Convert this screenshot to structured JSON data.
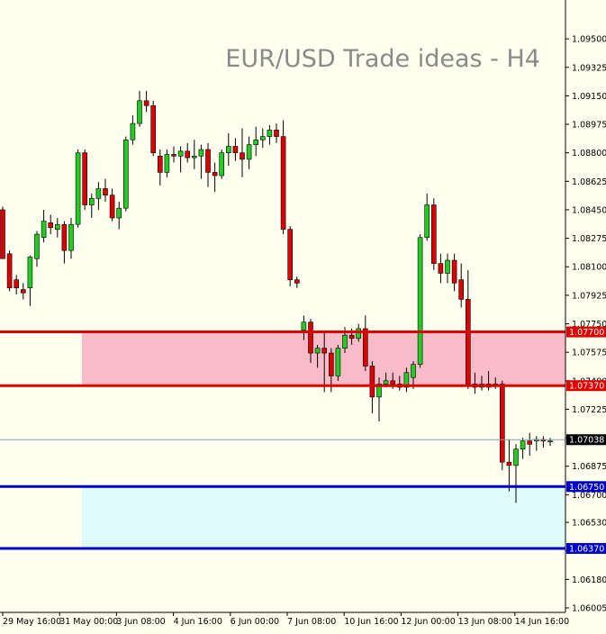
{
  "chart_data": {
    "type": "candlestick",
    "title": "EUR/USD Trade ideas - H4",
    "ylim": [
      1.06005,
      1.0965
    ],
    "y_ticks": [
      "1.09500",
      "1.09325",
      "1.09150",
      "1.08975",
      "1.08800",
      "1.08625",
      "1.08450",
      "1.08275",
      "1.08100",
      "1.07925",
      "1.07750",
      "1.07575",
      "1.07400",
      "1.07225",
      "1.07050",
      "1.06875",
      "1.06700",
      "1.06530",
      "1.06355",
      "1.06180",
      "1.06005"
    ],
    "x_ticks": [
      "29 May 16:00",
      "31 May 00:00",
      "3 Jun 08:00",
      "4 Jun 16:00",
      "6 Jun 00:00",
      "7 Jun 08:00",
      "10 Jun 16:00",
      "12 Jun 00:00",
      "13 Jun 08:00",
      "14 Jun 16:00"
    ],
    "zones": [
      {
        "top": 1.077,
        "bottom": 1.0737,
        "color": "#f8bcc8",
        "line_color": "#e00000",
        "top_label": "1.07700",
        "bottom_label": "1.07370"
      },
      {
        "top": 1.0675,
        "bottom": 1.0637,
        "color": "#e0fbfb",
        "line_color": "#0000cc",
        "top_label": "1.06750",
        "bottom_label": "1.06370"
      }
    ],
    "current_price": {
      "value": 1.07038,
      "label": "1.07038"
    },
    "candles": [
      {
        "o": 1.0845,
        "h": 1.0847,
        "l": 1.0815,
        "c": 1.0815
      },
      {
        "o": 1.0818,
        "h": 1.082,
        "l": 1.0795,
        "c": 1.0797
      },
      {
        "o": 1.0802,
        "h": 1.0805,
        "l": 1.0793,
        "c": 1.0797
      },
      {
        "o": 1.0796,
        "h": 1.08,
        "l": 1.079,
        "c": 1.0794
      },
      {
        "o": 1.0797,
        "h": 1.0817,
        "l": 1.0786,
        "c": 1.0816
      },
      {
        "o": 1.0815,
        "h": 1.0832,
        "l": 1.081,
        "c": 1.083
      },
      {
        "o": 1.0828,
        "h": 1.0845,
        "l": 1.0825,
        "c": 1.0838
      },
      {
        "o": 1.0837,
        "h": 1.0842,
        "l": 1.083,
        "c": 1.0834
      },
      {
        "o": 1.0833,
        "h": 1.084,
        "l": 1.0828,
        "c": 1.0836
      },
      {
        "o": 1.0836,
        "h": 1.0838,
        "l": 1.0812,
        "c": 1.082
      },
      {
        "o": 1.082,
        "h": 1.084,
        "l": 1.0815,
        "c": 1.0836
      },
      {
        "o": 1.0836,
        "h": 1.0882,
        "l": 1.0834,
        "c": 1.088
      },
      {
        "o": 1.088,
        "h": 1.0882,
        "l": 1.0845,
        "c": 1.0848
      },
      {
        "o": 1.0848,
        "h": 1.0855,
        "l": 1.084,
        "c": 1.0852
      },
      {
        "o": 1.0852,
        "h": 1.0862,
        "l": 1.0845,
        "c": 1.0858
      },
      {
        "o": 1.0858,
        "h": 1.0864,
        "l": 1.085,
        "c": 1.0854
      },
      {
        "o": 1.0854,
        "h": 1.0858,
        "l": 1.0838,
        "c": 1.084
      },
      {
        "o": 1.084,
        "h": 1.085,
        "l": 1.0833,
        "c": 1.0846
      },
      {
        "o": 1.0846,
        "h": 1.089,
        "l": 1.0844,
        "c": 1.0888
      },
      {
        "o": 1.0888,
        "h": 1.0903,
        "l": 1.0885,
        "c": 1.0898
      },
      {
        "o": 1.0898,
        "h": 1.0918,
        "l": 1.0896,
        "c": 1.0912
      },
      {
        "o": 1.0912,
        "h": 1.0918,
        "l": 1.0905,
        "c": 1.0909
      },
      {
        "o": 1.0909,
        "h": 1.0912,
        "l": 1.0878,
        "c": 1.088
      },
      {
        "o": 1.0878,
        "h": 1.0882,
        "l": 1.086,
        "c": 1.0868
      },
      {
        "o": 1.0868,
        "h": 1.0882,
        "l": 1.0865,
        "c": 1.0879
      },
      {
        "o": 1.0879,
        "h": 1.0884,
        "l": 1.0874,
        "c": 1.0878
      },
      {
        "o": 1.0878,
        "h": 1.0884,
        "l": 1.0868,
        "c": 1.0881
      },
      {
        "o": 1.0881,
        "h": 1.0886,
        "l": 1.0874,
        "c": 1.0877
      },
      {
        "o": 1.0877,
        "h": 1.0888,
        "l": 1.087,
        "c": 1.0878
      },
      {
        "o": 1.0878,
        "h": 1.0885,
        "l": 1.0864,
        "c": 1.0882
      },
      {
        "o": 1.0882,
        "h": 1.0886,
        "l": 1.0859,
        "c": 1.0868
      },
      {
        "o": 1.0868,
        "h": 1.0874,
        "l": 1.0856,
        "c": 1.0866
      },
      {
        "o": 1.0866,
        "h": 1.0882,
        "l": 1.0864,
        "c": 1.088
      },
      {
        "o": 1.088,
        "h": 1.0892,
        "l": 1.0872,
        "c": 1.0884
      },
      {
        "o": 1.0884,
        "h": 1.0889,
        "l": 1.0875,
        "c": 1.088
      },
      {
        "o": 1.088,
        "h": 1.0895,
        "l": 1.0865,
        "c": 1.0876
      },
      {
        "o": 1.0876,
        "h": 1.089,
        "l": 1.087,
        "c": 1.0885
      },
      {
        "o": 1.0885,
        "h": 1.0896,
        "l": 1.0878,
        "c": 1.0888
      },
      {
        "o": 1.0888,
        "h": 1.0895,
        "l": 1.0883,
        "c": 1.089
      },
      {
        "o": 1.089,
        "h": 1.0897,
        "l": 1.0885,
        "c": 1.0894
      },
      {
        "o": 1.0894,
        "h": 1.0898,
        "l": 1.0886,
        "c": 1.089
      },
      {
        "o": 1.089,
        "h": 1.09,
        "l": 1.083,
        "c": 1.0833
      },
      {
        "o": 1.0833,
        "h": 1.0835,
        "l": 1.0798,
        "c": 1.0802
      },
      {
        "o": 1.0802,
        "h": 1.0804,
        "l": 1.0797,
        "c": 1.08
      },
      {
        "o": 1.0771,
        "h": 1.078,
        "l": 1.0765,
        "c": 1.0776
      },
      {
        "o": 1.0776,
        "h": 1.0778,
        "l": 1.0751,
        "c": 1.0757
      },
      {
        "o": 1.0757,
        "h": 1.0762,
        "l": 1.0748,
        "c": 1.076
      },
      {
        "o": 1.076,
        "h": 1.077,
        "l": 1.0733,
        "c": 1.0757
      },
      {
        "o": 1.0757,
        "h": 1.076,
        "l": 1.0733,
        "c": 1.0743
      },
      {
        "o": 1.0743,
        "h": 1.0762,
        "l": 1.074,
        "c": 1.076
      },
      {
        "o": 1.076,
        "h": 1.0773,
        "l": 1.0757,
        "c": 1.0768
      },
      {
        "o": 1.0768,
        "h": 1.0772,
        "l": 1.0762,
        "c": 1.0766
      },
      {
        "o": 1.0766,
        "h": 1.0775,
        "l": 1.0764,
        "c": 1.0772
      },
      {
        "o": 1.0772,
        "h": 1.078,
        "l": 1.0746,
        "c": 1.0749
      },
      {
        "o": 1.0749,
        "h": 1.0752,
        "l": 1.072,
        "c": 1.073
      },
      {
        "o": 1.073,
        "h": 1.0742,
        "l": 1.0715,
        "c": 1.0738
      },
      {
        "o": 1.0738,
        "h": 1.0745,
        "l": 1.0736,
        "c": 1.074
      },
      {
        "o": 1.074,
        "h": 1.0745,
        "l": 1.0735,
        "c": 1.0738
      },
      {
        "o": 1.0738,
        "h": 1.0743,
        "l": 1.0734,
        "c": 1.0736
      },
      {
        "o": 1.0736,
        "h": 1.0748,
        "l": 1.0733,
        "c": 1.0745
      },
      {
        "o": 1.0742,
        "h": 1.0752,
        "l": 1.0735,
        "c": 1.075
      },
      {
        "o": 1.075,
        "h": 1.083,
        "l": 1.0748,
        "c": 1.0828
      },
      {
        "o": 1.0828,
        "h": 1.0855,
        "l": 1.0826,
        "c": 1.0848
      },
      {
        "o": 1.0848,
        "h": 1.0852,
        "l": 1.0808,
        "c": 1.0812
      },
      {
        "o": 1.0812,
        "h": 1.0818,
        "l": 1.08,
        "c": 1.0806
      },
      {
        "o": 1.0806,
        "h": 1.0818,
        "l": 1.08,
        "c": 1.0814
      },
      {
        "o": 1.0814,
        "h": 1.0818,
        "l": 1.0795,
        "c": 1.08
      },
      {
        "o": 1.0802,
        "h": 1.0812,
        "l": 1.0785,
        "c": 1.079
      },
      {
        "o": 1.079,
        "h": 1.0808,
        "l": 1.0735,
        "c": 1.0738
      },
      {
        "o": 1.0738,
        "h": 1.0745,
        "l": 1.0732,
        "c": 1.0736
      },
      {
        "o": 1.0736,
        "h": 1.0743,
        "l": 1.0734,
        "c": 1.0738
      },
      {
        "o": 1.0738,
        "h": 1.0746,
        "l": 1.0734,
        "c": 1.0736
      },
      {
        "o": 1.0738,
        "h": 1.0742,
        "l": 1.0735,
        "c": 1.0738
      },
      {
        "o": 1.0738,
        "h": 1.074,
        "l": 1.0685,
        "c": 1.069
      },
      {
        "o": 1.069,
        "h": 1.0704,
        "l": 1.0672,
        "c": 1.0688
      },
      {
        "o": 1.0688,
        "h": 1.0701,
        "l": 1.0665,
        "c": 1.0698
      },
      {
        "o": 1.0698,
        "h": 1.0705,
        "l": 1.0692,
        "c": 1.0703
      },
      {
        "o": 1.0703,
        "h": 1.0708,
        "l": 1.0694,
        "c": 1.0701
      },
      {
        "o": 1.0703,
        "h": 1.0706,
        "l": 1.0697,
        "c": 1.0704
      },
      {
        "o": 1.0704,
        "h": 1.0706,
        "l": 1.0699,
        "c": 1.0703
      },
      {
        "o": 1.0703,
        "h": 1.0705,
        "l": 1.07,
        "c": 1.0703
      }
    ],
    "colors": {
      "up": "#22cc22",
      "down": "#dd0000",
      "wick": "#000000",
      "grid": "#ffffff",
      "axis": "#000000",
      "title": "#8a8a8a",
      "current_line": "#8a9bb0"
    },
    "grid": false,
    "legend": "none"
  }
}
